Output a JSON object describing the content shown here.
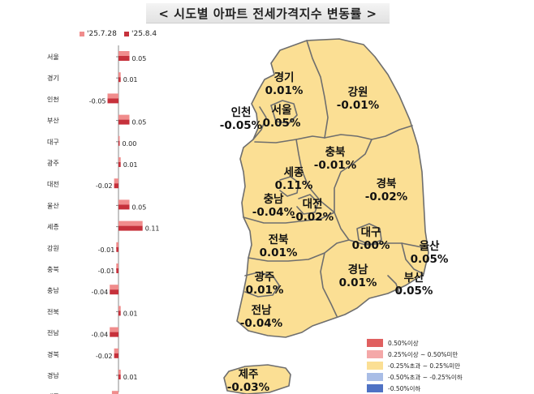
{
  "title": "< 시도별 아파트 전세가격지수 변동률 >",
  "colors": {
    "prev": "#f08c8c",
    "curr": "#c6313b",
    "map_fill": "#fbdf94",
    "map_stroke": "#6e6e6e"
  },
  "chart_data": {
    "type": "bar",
    "orientation": "horizontal",
    "series": [
      {
        "name": "'25.7.28",
        "color": "#f08c8c"
      },
      {
        "name": "'25.8.4",
        "color": "#c6313b",
        "values": [
          0.05,
          0.01,
          -0.05,
          0.05,
          0.0,
          0.01,
          -0.02,
          0.05,
          0.11,
          -0.01,
          -0.01,
          -0.04,
          0.01,
          -0.04,
          -0.02,
          0.01,
          -0.03
        ]
      }
    ],
    "categories": [
      "서울",
      "경기",
      "인천",
      "부산",
      "대구",
      "광주",
      "대전",
      "울산",
      "세종",
      "강원",
      "충북",
      "충남",
      "전북",
      "전남",
      "경북",
      "경남",
      "제주"
    ],
    "value_labels": [
      "0.05",
      "0.01",
      "-0.05",
      "0.05",
      "0.00",
      "0.01",
      "-0.02",
      "0.05",
      "0.11",
      "-0.01",
      "-0.01",
      "-0.04",
      "0.01",
      "-0.04",
      "-0.02",
      "0.01",
      "-0.03"
    ]
  },
  "map_labels": [
    {
      "name": "경기",
      "value": "0.01%"
    },
    {
      "name": "강원",
      "value": "-0.01%"
    },
    {
      "name": "인천",
      "value": "-0.05%"
    },
    {
      "name": "서울",
      "value": "0.05%"
    },
    {
      "name": "충북",
      "value": "-0.01%"
    },
    {
      "name": "세종",
      "value": "0.11%"
    },
    {
      "name": "경북",
      "value": "-0.02%"
    },
    {
      "name": "충남",
      "value": "-0.04%"
    },
    {
      "name": "대전",
      "value": "-0.02%"
    },
    {
      "name": "대구",
      "value": "0.00%"
    },
    {
      "name": "울산",
      "value": "0.05%"
    },
    {
      "name": "전북",
      "value": "0.01%"
    },
    {
      "name": "경남",
      "value": "0.01%"
    },
    {
      "name": "부산",
      "value": "0.05%"
    },
    {
      "name": "광주",
      "value": "0.01%"
    },
    {
      "name": "전남",
      "value": "-0.04%"
    },
    {
      "name": "제주",
      "value": "-0.03%"
    }
  ],
  "map_legend": [
    {
      "label": "0.50%이상",
      "color": "#e06060"
    },
    {
      "label": "0.25%이상 ~ 0.50%미만",
      "color": "#f4a8a8"
    },
    {
      "label": "-0.25%초과 ~ 0.25%미만",
      "color": "#fbdf94"
    },
    {
      "label": "-0.50%초과 ~ -0.25%이하",
      "color": "#a9bde6"
    },
    {
      "label": "-0.50%이하",
      "color": "#4f72c4"
    }
  ]
}
